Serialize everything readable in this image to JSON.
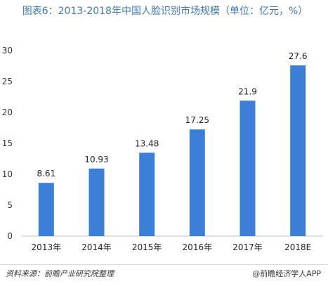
{
  "header": {
    "title": "图表6：2013-2018年中国人脸识别市场规模（单位：亿元，%）"
  },
  "chart_data": {
    "type": "bar",
    "title": "图表6：2013-2018年中国人脸识别市场规模（单位：亿元，%）",
    "categories": [
      "2013年",
      "2014年",
      "2015年",
      "2016年",
      "2017年",
      "2018E"
    ],
    "values": [
      8.61,
      10.93,
      13.48,
      17.25,
      21.9,
      27.6
    ],
    "value_labels": [
      "8.61",
      "10.93",
      "13.48",
      "17.25",
      "21.9",
      "27.6"
    ],
    "ylim": [
      0,
      30
    ],
    "yticks": [
      0,
      5,
      10,
      15,
      20,
      25,
      30
    ],
    "xlabel": "",
    "ylabel": "",
    "grid": false,
    "bar_color": "#3b7fd9"
  },
  "footer": {
    "source": "资料来源：前瞻产业研究院整理",
    "brand": "@前瞻经济学人APP"
  }
}
